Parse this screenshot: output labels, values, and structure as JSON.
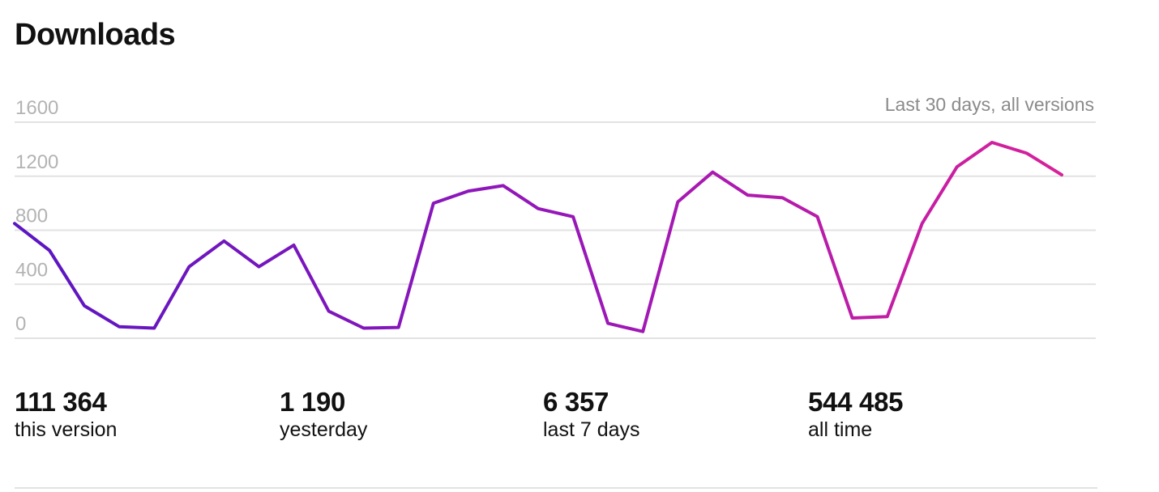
{
  "title": "Downloads",
  "caption": "Last 30 days, all versions",
  "chart_data": {
    "type": "line",
    "title": "",
    "xlabel": "",
    "ylabel": "",
    "ylim": [
      0,
      1600
    ],
    "yticks": [
      0,
      400,
      800,
      1200,
      1600
    ],
    "grid": true,
    "colors": {
      "start": "#5a16c2",
      "mid": "#9a17b8",
      "end": "#d8219a"
    },
    "series": [
      {
        "values": [
          850,
          650,
          240,
          85,
          75,
          530,
          720,
          530,
          690,
          200,
          75,
          80,
          1000,
          1090,
          1130,
          960,
          900,
          110,
          50,
          1010,
          1230,
          1060,
          1040,
          900,
          150,
          160,
          850,
          1270,
          1450,
          1370,
          1210
        ]
      }
    ]
  },
  "stats": [
    {
      "value": "111 364",
      "label": "this version"
    },
    {
      "value": "1 190",
      "label": "yesterday"
    },
    {
      "value": "6 357",
      "label": "last 7 days"
    },
    {
      "value": "544 485",
      "label": "all time"
    }
  ]
}
